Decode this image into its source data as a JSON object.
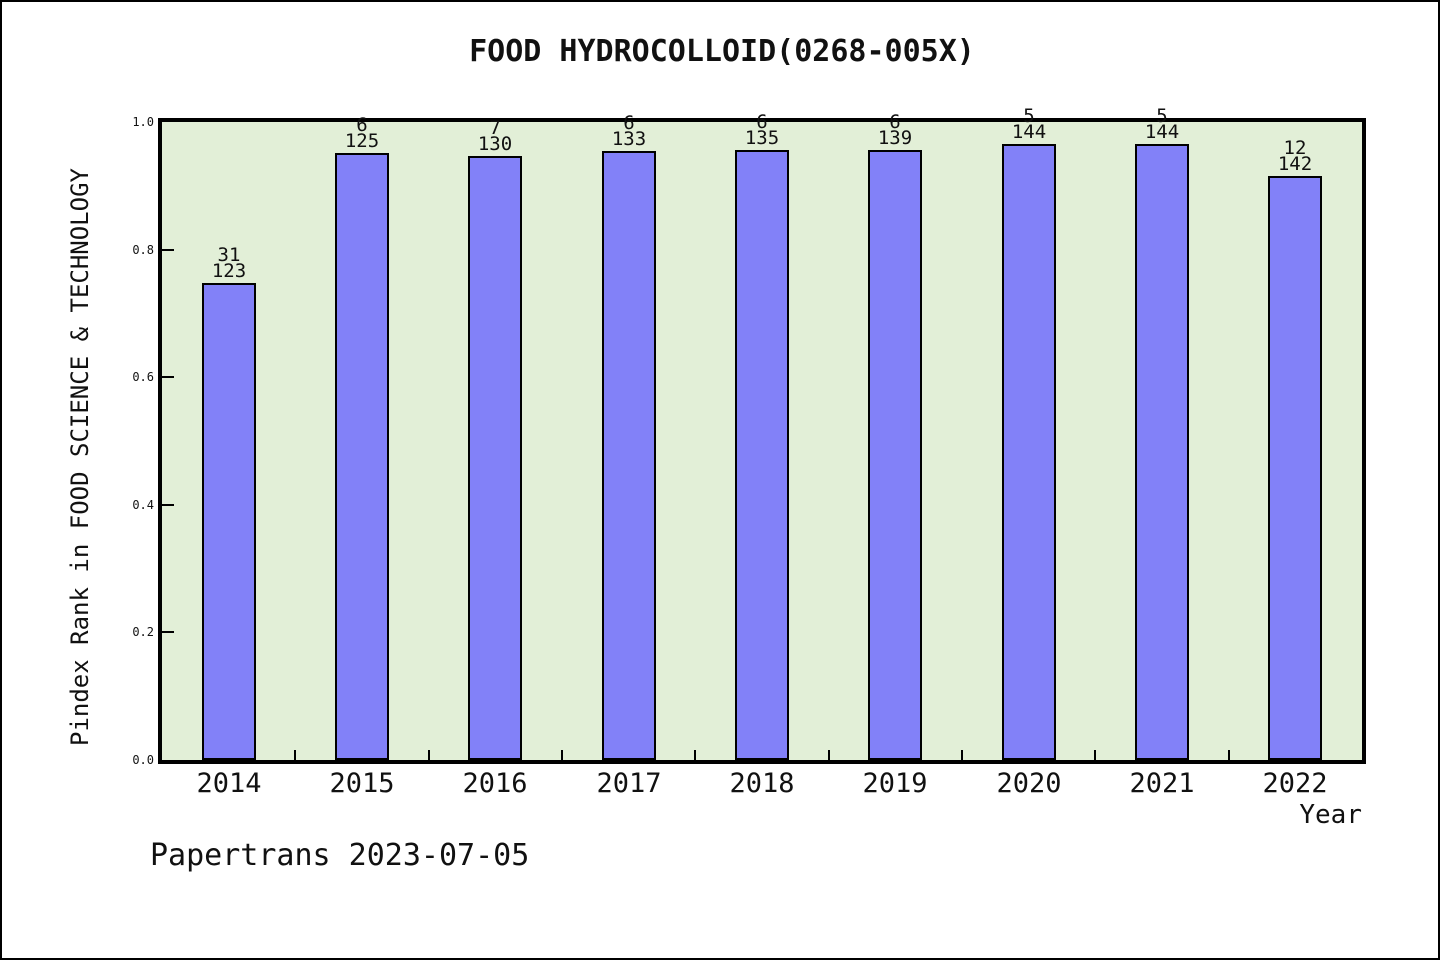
{
  "header": {
    "title": "FOOD HYDROCOLLOID(0268-005X)"
  },
  "footer": {
    "text": "Papertrans 2023-07-05"
  },
  "chart_data": {
    "type": "bar",
    "title": "FOOD HYDROCOLLOID(0268-005X)",
    "xlabel": "Year",
    "ylabel": "Pindex Rank in FOOD SCIENCE & TECHNOLOGY",
    "categories": [
      "2014",
      "2015",
      "2016",
      "2017",
      "2018",
      "2019",
      "2020",
      "2021",
      "2022"
    ],
    "series": [
      {
        "name": "rank",
        "values": [
          31,
          6,
          7,
          6,
          6,
          6,
          5,
          5,
          12
        ]
      },
      {
        "name": "total",
        "values": [
          123,
          125,
          130,
          133,
          135,
          139,
          144,
          144,
          142
        ]
      }
    ],
    "bar_fractions": [
      0.748,
      0.952,
      0.946,
      0.955,
      0.956,
      0.957,
      0.965,
      0.965,
      0.915
    ],
    "bar_label_lines": [
      [
        "31",
        "123"
      ],
      [
        "6",
        "125"
      ],
      [
        "7",
        "130"
      ],
      [
        "6",
        "133"
      ],
      [
        "6",
        "135"
      ],
      [
        "6",
        "139"
      ],
      [
        "5",
        "144"
      ],
      [
        "5",
        "144"
      ],
      [
        "12",
        "142"
      ]
    ],
    "ylim": [
      0.0,
      1.0
    ],
    "yticks": [
      "0.0",
      "0.2",
      "0.4",
      "0.6",
      "0.8",
      "1.0"
    ],
    "grid": "off",
    "legend": "none",
    "colors": {
      "bar_fill": "#8281f8",
      "bar_edge": "#000000",
      "plot_bg": "#e2efd7",
      "frame": "#000000",
      "text": "#111111",
      "page_bg": "#ffffff"
    }
  }
}
